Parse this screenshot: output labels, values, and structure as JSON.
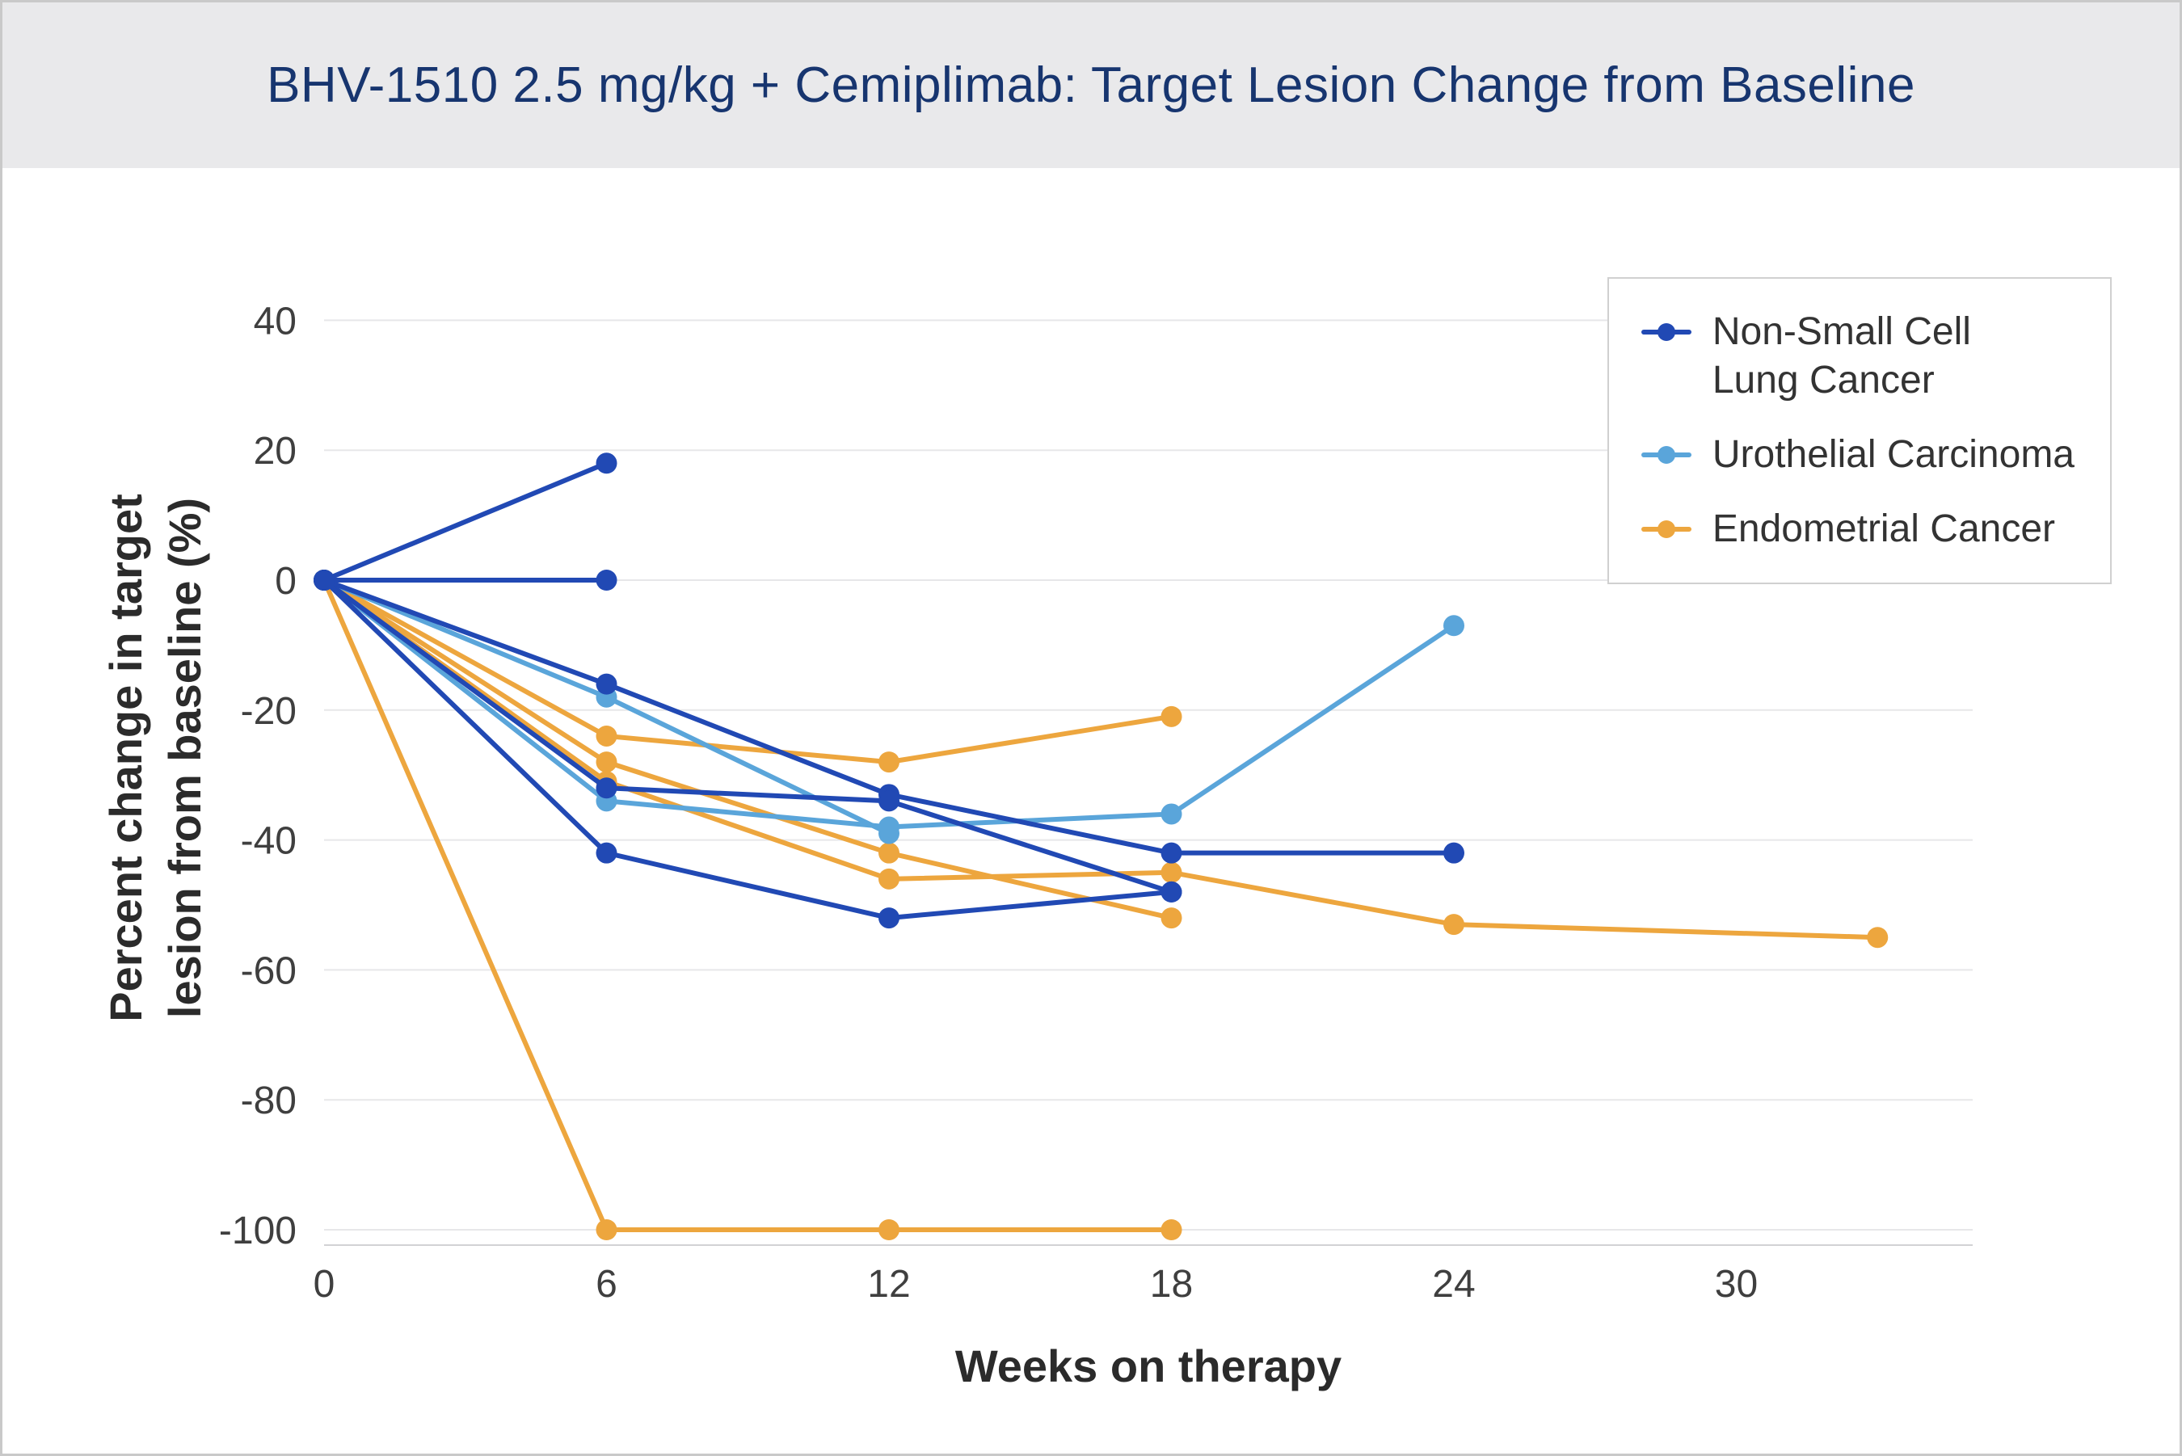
{
  "header": {
    "title": "BHV-1510 2.5 mg/kg + Cemiplimab: Target Lesion Change from Baseline"
  },
  "chart_data": {
    "type": "line",
    "title": "BHV-1510 2.5 mg/kg + Cemiplimab: Target Lesion Change from Baseline",
    "xlabel": "Weeks on therapy",
    "ylabel": "Percent change in target lesion from baseline (%)",
    "ylabel_lines": [
      "Percent change in target",
      "lesion from baseline (%)"
    ],
    "x_ticks": [
      0,
      6,
      12,
      18,
      24,
      30
    ],
    "y_ticks": [
      40,
      20,
      0,
      -20,
      -40,
      -60,
      -80,
      -100
    ],
    "xlim": [
      0,
      35
    ],
    "ylim": [
      -102,
      48
    ],
    "grid": "horizontal",
    "legend_position": "top-right",
    "colors": {
      "header_bg": "#e9e9eb",
      "title_text": "#17356f",
      "grid": "#e7e7e9",
      "axis_line": "#d2d2d4",
      "tick_text": "#3f3f3f",
      "axis_title_text": "#2b2b2b",
      "legend_border": "#d0d0d0",
      "page_border": "#c9c9c9"
    },
    "groups": [
      {
        "name": "Non-Small Cell Lung Cancer",
        "legend_lines": [
          "Non-Small Cell",
          "Lung Cancer"
        ],
        "color": "#2149b4",
        "series": [
          {
            "points": [
              [
                0,
                0
              ],
              [
                6,
                18
              ]
            ]
          },
          {
            "points": [
              [
                0,
                0
              ],
              [
                6,
                0
              ]
            ]
          },
          {
            "points": [
              [
                0,
                0
              ],
              [
                6,
                -16
              ],
              [
                12,
                -33
              ],
              [
                18,
                -42
              ],
              [
                24,
                -42
              ]
            ]
          },
          {
            "points": [
              [
                0,
                0
              ],
              [
                6,
                -32
              ],
              [
                12,
                -34
              ],
              [
                18,
                -48
              ]
            ]
          },
          {
            "points": [
              [
                0,
                0
              ],
              [
                6,
                -42
              ],
              [
                12,
                -52
              ],
              [
                18,
                -48
              ]
            ]
          }
        ]
      },
      {
        "name": "Urothelial Carcinoma",
        "legend_lines": [
          "Urothelial Carcinoma"
        ],
        "color": "#5aa5da",
        "series": [
          {
            "points": [
              [
                0,
                0
              ],
              [
                6,
                -18
              ],
              [
                12,
                -39
              ]
            ]
          },
          {
            "points": [
              [
                0,
                0
              ],
              [
                6,
                -34
              ],
              [
                12,
                -38
              ],
              [
                18,
                -36
              ],
              [
                24,
                -7
              ]
            ]
          }
        ]
      },
      {
        "name": "Endometrial Cancer",
        "legend_lines": [
          "Endometrial Cancer"
        ],
        "color": "#eda63e",
        "series": [
          {
            "points": [
              [
                0,
                0
              ],
              [
                6,
                -24
              ],
              [
                12,
                -28
              ],
              [
                18,
                -21
              ]
            ]
          },
          {
            "points": [
              [
                0,
                0
              ],
              [
                6,
                -31
              ],
              [
                12,
                -46
              ],
              [
                18,
                -45
              ],
              [
                24,
                -53
              ],
              [
                33,
                -55
              ]
            ]
          },
          {
            "points": [
              [
                0,
                0
              ],
              [
                6,
                -28
              ],
              [
                12,
                -42
              ],
              [
                18,
                -52
              ]
            ]
          },
          {
            "points": [
              [
                0,
                0
              ],
              [
                6,
                -100
              ],
              [
                12,
                -100
              ],
              [
                18,
                -100
              ]
            ]
          }
        ]
      }
    ]
  }
}
